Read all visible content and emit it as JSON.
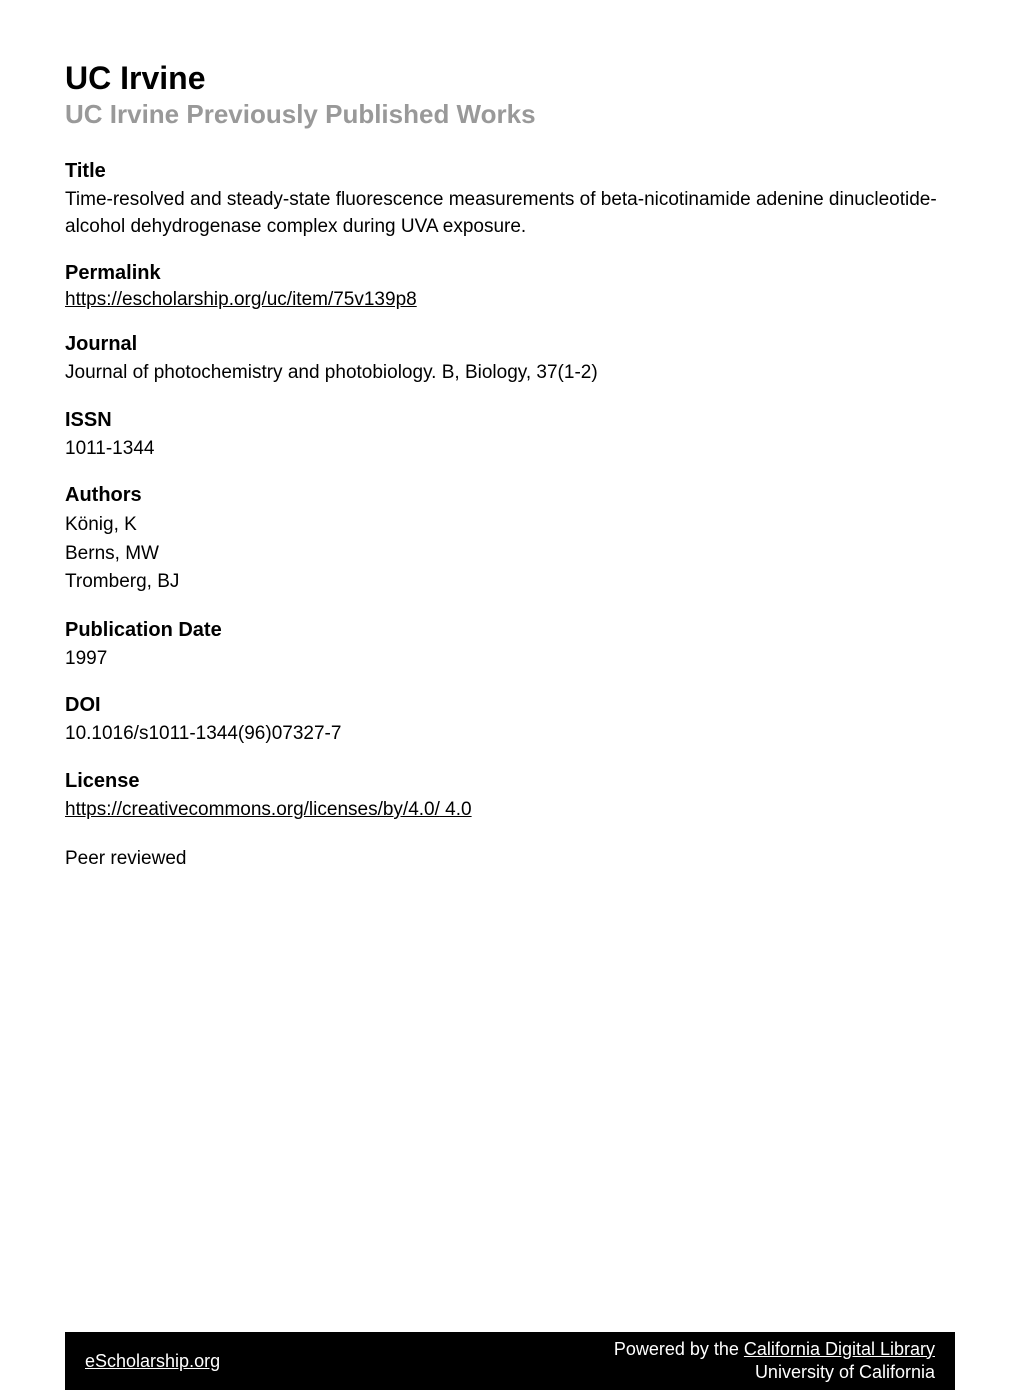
{
  "header": {
    "institution": "UC Irvine",
    "series": "UC Irvine Previously Published Works"
  },
  "title": {
    "label": "Title",
    "value": "Time-resolved and steady-state fluorescence measurements of beta-nicotinamide adenine dinucleotide-alcohol dehydrogenase complex during UVA exposure."
  },
  "permalink": {
    "label": "Permalink",
    "url": "https://escholarship.org/uc/item/75v139p8"
  },
  "journal": {
    "label": "Journal",
    "value": "Journal of photochemistry and photobiology. B, Biology, 37(1-2)"
  },
  "issn": {
    "label": "ISSN",
    "value": "1011-1344"
  },
  "authors": {
    "label": "Authors",
    "list": [
      "König, K",
      "Berns, MW",
      "Tromberg, BJ"
    ]
  },
  "pubdate": {
    "label": "Publication Date",
    "value": "1997"
  },
  "doi": {
    "label": "DOI",
    "value": "10.1016/s1011-1344(96)07327-7"
  },
  "license": {
    "label": "License",
    "url_text": "https://creativecommons.org/licenses/by/4.0/",
    "version": " 4.0"
  },
  "peer_review": {
    "value": "Peer reviewed"
  },
  "footer": {
    "left": "eScholarship.org",
    "right_prefix": "Powered by the ",
    "right_link": "California Digital Library",
    "right_line2": "University of California"
  },
  "colors": {
    "text": "#000000",
    "subtitle": "#999999",
    "footer_bg": "#000000",
    "footer_text": "#ffffff",
    "background": "#ffffff"
  },
  "typography": {
    "header_title_size": 32,
    "header_subtitle_size": 26,
    "section_label_size": 20,
    "section_value_size": 19,
    "footer_size": 18
  }
}
